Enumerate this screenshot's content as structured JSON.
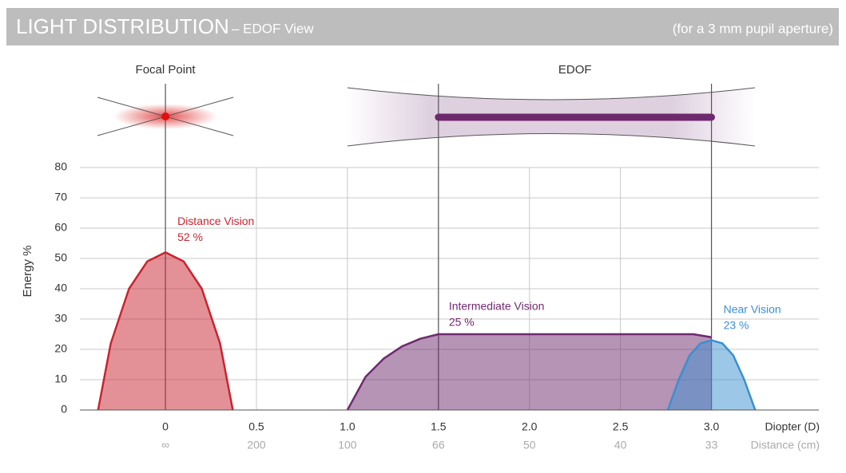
{
  "chart_data": {
    "type": "area",
    "title": "LIGHT DISTRIBUTION",
    "subtitle": "– EDOF View",
    "note": "(for a 3 mm pupil aperture)",
    "focal_label": "Focal Point",
    "edof_label": "EDOF",
    "focal_point": 0,
    "edof_range": [
      1.5,
      3.0
    ],
    "ylabel": "Energy %",
    "xlabel": "Diopter (D)",
    "x2label": "Distance (cm)",
    "xlim": [
      -0.47,
      3.59
    ],
    "xticks": [
      0,
      0.5,
      {
        "value": 1,
        "label": "1.0"
      },
      1.5,
      {
        "value": 2,
        "label": "2.0"
      },
      2.5,
      {
        "value": 3,
        "label": "3.0"
      }
    ],
    "distance_labels": [
      "∞",
      "200",
      "100",
      "66",
      "50",
      "40",
      "33"
    ],
    "ylim": [
      0,
      80
    ],
    "yticks": [
      0,
      10,
      20,
      30,
      40,
      50,
      60,
      70,
      80
    ],
    "grid": true,
    "series": [
      {
        "name": "Distance Vision",
        "color": "#c8242f",
        "peak": 52,
        "peak_label": "52 %",
        "x": [
          -0.37,
          -0.3,
          -0.2,
          -0.1,
          0,
          0.1,
          0.2,
          0.3,
          0.37
        ],
        "values": [
          0,
          22,
          40,
          49,
          52,
          49,
          40,
          22,
          0
        ]
      },
      {
        "name": "Intermediate Vision",
        "color": "#6e2a6e",
        "peak": 25,
        "peak_label": "25 %",
        "x": [
          1.0,
          1.1,
          1.2,
          1.3,
          1.4,
          1.5,
          2.0,
          2.5,
          2.9,
          3.0
        ],
        "values": [
          0,
          11,
          17,
          21,
          23.5,
          25,
          25,
          25,
          25,
          24
        ]
      },
      {
        "name": "Near Vision",
        "color": "#3b8fd0",
        "peak": 23,
        "peak_label": "23 %",
        "x": [
          2.76,
          2.82,
          2.88,
          2.94,
          3.0,
          3.06,
          3.12,
          3.18,
          3.24
        ],
        "values": [
          0,
          10,
          18,
          22,
          23,
          22,
          18,
          10,
          0
        ]
      }
    ]
  }
}
